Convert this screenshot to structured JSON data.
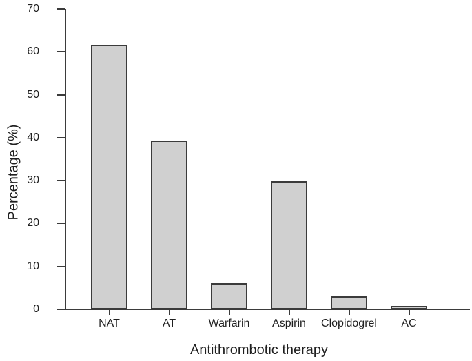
{
  "chart_data": {
    "type": "bar",
    "title": "",
    "xlabel": "Antithrombotic therapy",
    "ylabel": "Percentage (%)",
    "categories": [
      "NAT",
      "AT",
      "Warfarin",
      "Aspirin",
      "Clopidogrel",
      "AC"
    ],
    "values": [
      61.7,
      39.4,
      6.1,
      29.8,
      3.1,
      0.8
    ],
    "ylim": [
      0,
      70
    ],
    "ytick_interval": 10,
    "ytick_labels": [
      "0",
      "10",
      "20",
      "30",
      "40",
      "50",
      "60",
      "70"
    ],
    "grid": false,
    "legend": "none",
    "bar_fill_color": "#d0d0d0",
    "bar_border_color": "#3b3b3b",
    "axis_color": "#3b3b3b",
    "background_color": "#ffffff"
  }
}
